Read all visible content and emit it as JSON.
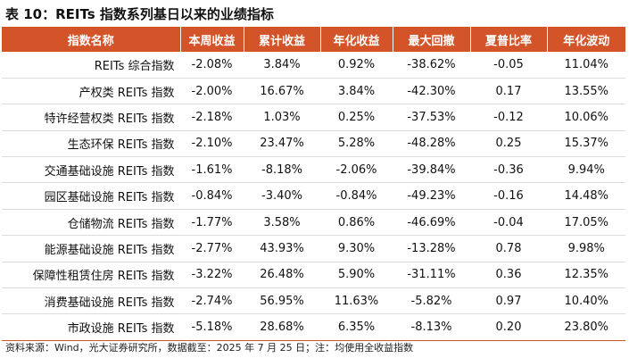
{
  "title": "表 10：REITs 指数系列基日以来的业绩指标",
  "table": {
    "headers": [
      "指数名称",
      "本周收益",
      "累计收益",
      "年化收益",
      "最大回撤",
      "夏普比率",
      "年化波动"
    ],
    "rows": [
      [
        "REITs 综合指数",
        "-2.08%",
        "3.84%",
        "0.92%",
        "-38.62%",
        "-0.05",
        "11.04%"
      ],
      [
        "产权类 REITs 指数",
        "-2.00%",
        "16.67%",
        "3.84%",
        "-42.30%",
        "0.17",
        "13.55%"
      ],
      [
        "特许经营权类 REITs 指数",
        "-2.18%",
        "1.03%",
        "0.25%",
        "-37.53%",
        "-0.12",
        "10.06%"
      ],
      [
        "生态环保 REITs 指数",
        "-2.10%",
        "23.47%",
        "5.28%",
        "-48.28%",
        "0.25",
        "15.37%"
      ],
      [
        "交通基础设施 REITs 指数",
        "-1.61%",
        "-8.18%",
        "-2.06%",
        "-39.84%",
        "-0.36",
        "9.94%"
      ],
      [
        "园区基础设施 REITs 指数",
        "-0.84%",
        "-3.40%",
        "-0.84%",
        "-49.23%",
        "-0.16",
        "14.48%"
      ],
      [
        "仓储物流 REITs 指数",
        "-1.77%",
        "3.58%",
        "0.86%",
        "-46.69%",
        "-0.04",
        "17.05%"
      ],
      [
        "能源基础设施 REITs 指数",
        "-2.77%",
        "43.93%",
        "9.30%",
        "-13.28%",
        "0.78",
        "9.98%"
      ],
      [
        "保障性租赁住房 REITs 指数",
        "-3.22%",
        "26.48%",
        "5.90%",
        "-31.11%",
        "0.36",
        "12.35%"
      ],
      [
        "消费基础设施 REITs 指数",
        "-2.74%",
        "56.95%",
        "11.63%",
        "-5.82%",
        "0.97",
        "10.40%"
      ],
      [
        "市政设施 REITs 指数",
        "-5.18%",
        "28.68%",
        "6.35%",
        "-8.13%",
        "0.20",
        "23.80%"
      ]
    ]
  },
  "source": "资料来源：Wind，光大证券研究所，数据截至：2025 年 7 月 25 日；注：均使用全收益指数",
  "colors": {
    "header_bg": "#d4542a",
    "header_text": "#ffffff"
  }
}
